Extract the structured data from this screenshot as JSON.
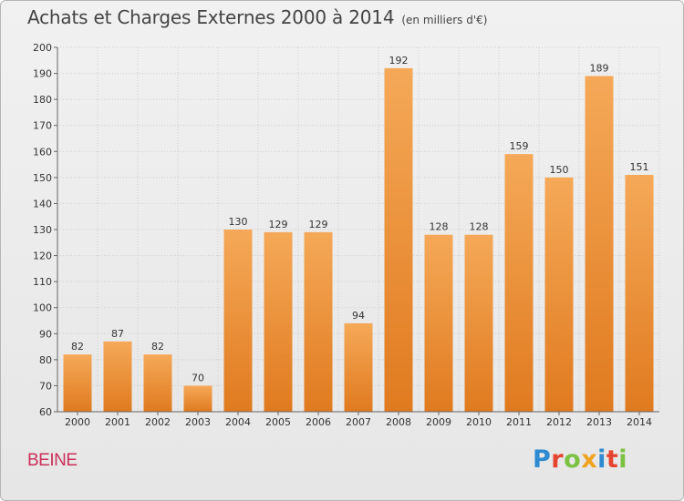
{
  "title": "Achats et Charges Externes 2000 à 2014",
  "subtitle": "(en milliers d'€)",
  "commune": "BEINE",
  "logo_text": "Proxiti",
  "colors": {
    "bar_light": "#f5a958",
    "bar_dark": "#e07a1f",
    "title": "#444444",
    "commune": "#cc2f5a",
    "grid": "#cfcfcf"
  },
  "chart_data": {
    "type": "bar",
    "categories": [
      "2000",
      "2001",
      "2002",
      "2003",
      "2004",
      "2005",
      "2006",
      "2007",
      "2008",
      "2009",
      "2010",
      "2011",
      "2012",
      "2013",
      "2014"
    ],
    "values": [
      82,
      87,
      82,
      70,
      130,
      129,
      129,
      94,
      192,
      128,
      128,
      159,
      150,
      189,
      151
    ],
    "ylim": [
      60,
      200
    ],
    "yticks": [
      60,
      70,
      80,
      90,
      100,
      110,
      120,
      130,
      140,
      150,
      160,
      170,
      180,
      190,
      200
    ],
    "grid": true
  }
}
